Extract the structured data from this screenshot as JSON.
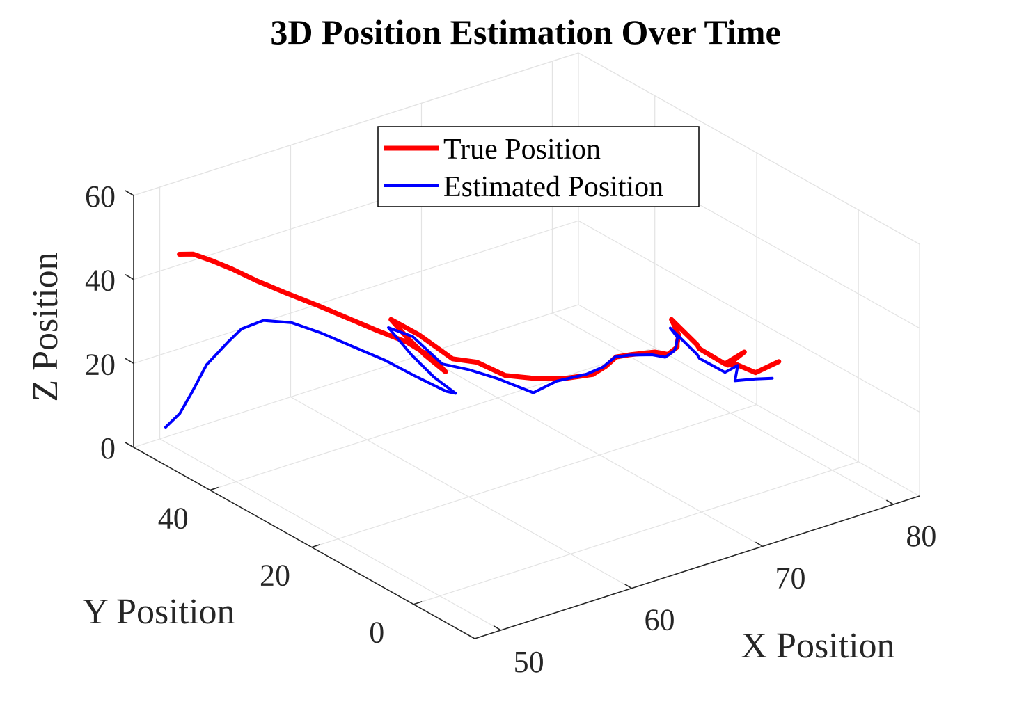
{
  "chart_data": {
    "type": "line",
    "projection": "3d",
    "title": "3D Position Estimation Over Time",
    "xlabel": "X Position",
    "ylabel": "Y Position",
    "zlabel": "Z Position",
    "xlim": [
      48,
      82
    ],
    "ylim": [
      -12,
      55
    ],
    "zlim": [
      0,
      60
    ],
    "x_ticks": [
      50,
      60,
      70,
      80
    ],
    "y_ticks": [
      0,
      20,
      40
    ],
    "z_ticks": [
      0,
      20,
      40,
      60
    ],
    "grid": true,
    "legend_position": "top-center",
    "series": [
      {
        "name": "True Position",
        "color": "#ff0000",
        "x": [
          50.4,
          50.9,
          51.6,
          52.6,
          53.5,
          54.6,
          55.6,
          56.5,
          57.4,
          58.4,
          59.0,
          58.8,
          58.6,
          58.8,
          59.3,
          59.7,
          60.7,
          61.7,
          62.0,
          62.6,
          63.6,
          65.0,
          65.8,
          66.2,
          66.8,
          67.6,
          68.2,
          69.0,
          69.7,
          70.6,
          71.6,
          72.0,
          71.4,
          71.8,
          72.5,
          72.0,
          71.2,
          71.8,
          72.8
        ],
        "y": [
          52.2,
          50.8,
          49.0,
          47.5,
          45.0,
          42.0,
          38.5,
          35.0,
          31.5,
          28.0,
          24.5,
          21.5,
          25.0,
          29.0,
          33.5,
          29.0,
          25.0,
          22.8,
          18.0,
          13.0,
          10.0,
          8.5,
          8.0,
          7.0,
          5.5,
          3.0,
          2.0,
          2.2,
          4.0,
          6.0,
          10.0,
          6.0,
          4.0,
          0.0,
          -2.0,
          0.0,
          -3.5,
          -6.0,
          -8.0
        ],
        "z": [
          45.5,
          46.0,
          45.0,
          43.0,
          41.0,
          39.0,
          37.5,
          36.0,
          34.5,
          33.0,
          31.0,
          30.0,
          31.8,
          33.0,
          33.8,
          32.8,
          28.8,
          28.5,
          28.3,
          30.3,
          31.5,
          32.0,
          33.5,
          36.0,
          37.0,
          38.5,
          38.0,
          38.8,
          37.8,
          37.5,
          37.5,
          33.8,
          34.8,
          33.5,
          37.0,
          33.0,
          36.5,
          35.5,
          38.5
        ]
      },
      {
        "name": "Estimated Position",
        "color": "#0000ff",
        "x": [
          48.5,
          48.8,
          49.2,
          49.6,
          50.2,
          50.4,
          51.3,
          52.3,
          53.2,
          54.3,
          55.4,
          56.4,
          57.5,
          58.4,
          58.5,
          58.8,
          59.3,
          59.6,
          60.3,
          61.4,
          62.2,
          62.6,
          63.2,
          64.7,
          65.8,
          66.3,
          66.8,
          67.6,
          68.2,
          69.0,
          69.8,
          70.7,
          71.7,
          72.0,
          71.4,
          71.8,
          72.0,
          71.0,
          71.8,
          72.5
        ],
        "y": [
          50.0,
          48.0,
          46.5,
          44.8,
          42.2,
          40.0,
          38.0,
          35.0,
          31.5,
          28.0,
          24.6,
          21.3,
          18.0,
          18.5,
          23.0,
          28.2,
          34.0,
          30.0,
          26.0,
          23.5,
          20.0,
          14.0,
          11.0,
          9.0,
          8.5,
          7.5,
          6.0,
          3.5,
          2.5,
          2.8,
          4.5,
          6.5,
          10.5,
          6.0,
          4.0,
          0.0,
          -2.0,
          -4.0,
          -6.0,
          -7.5
        ],
        "z": [
          7.7,
          12.0,
          18.0,
          25.0,
          31.5,
          36.0,
          38.5,
          39.0,
          38.0,
          36.0,
          34.0,
          31.5,
          29.0,
          27.3,
          28.0,
          29.5,
          31.5,
          31.8,
          27.3,
          26.5,
          26.0,
          26.3,
          30.5,
          32.0,
          33.0,
          35.5,
          36.5,
          37.5,
          37.0,
          37.5,
          36.5,
          36.5,
          35.0,
          31.5,
          32.5,
          31.5,
          34.3,
          33.0,
          34.0,
          34.5
        ]
      }
    ]
  }
}
